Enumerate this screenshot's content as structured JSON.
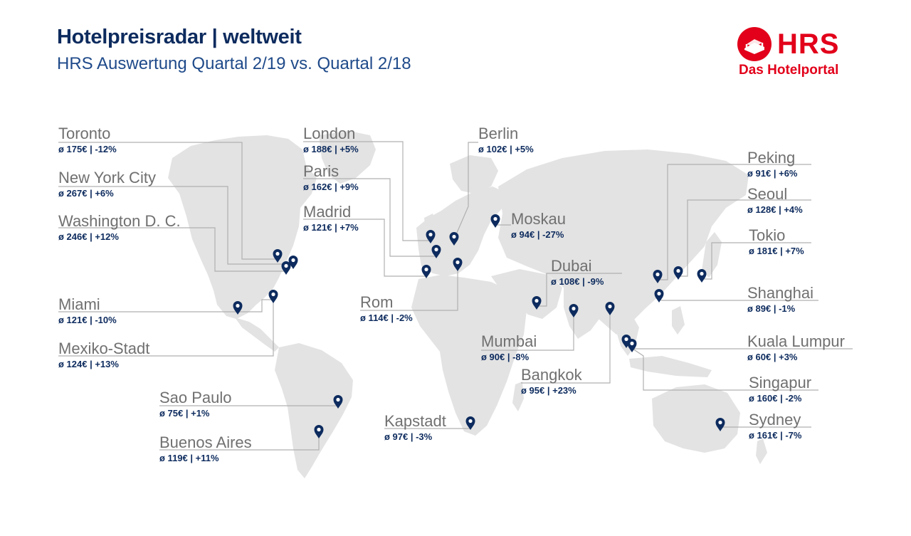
{
  "header": {
    "title": "Hotelpreisradar | weltweit",
    "subtitle": "HRS Auswertung Quartal 2/19 vs. Quartal 2/18"
  },
  "logo": {
    "wordmark": "HRS",
    "tagline": "Das Hotelportal",
    "color": "#e2001a"
  },
  "colors": {
    "land": "#e3e3e3",
    "marker": "#0d2b5e",
    "leader_line": "#b0b0b0",
    "city_name": "#707070",
    "stats": "#0d2b5e"
  },
  "cities": [
    {
      "name": "Toronto",
      "stats": "ø 175€ | -12%"
    },
    {
      "name": "New York City",
      "stats": "ø 267€ | +6%"
    },
    {
      "name": "Washington D. C.",
      "stats": "ø 246€ | +12%"
    },
    {
      "name": "Miami",
      "stats": "ø 121€ | -10%"
    },
    {
      "name": "Mexiko-Stadt",
      "stats": "ø 124€ | +13%"
    },
    {
      "name": "Sao Paulo",
      "stats": "ø 75€ | +1%"
    },
    {
      "name": "Buenos Aires",
      "stats": "ø 119€ | +11%"
    },
    {
      "name": "London",
      "stats": "ø 188€ | +5%"
    },
    {
      "name": "Paris",
      "stats": "ø 162€ | +9%"
    },
    {
      "name": "Madrid",
      "stats": "ø 121€ | +7%"
    },
    {
      "name": "Rom",
      "stats": "ø 114€ | -2%"
    },
    {
      "name": "Berlin",
      "stats": "ø 102€ | +5%"
    },
    {
      "name": "Moskau",
      "stats": "ø 94€ | -27%"
    },
    {
      "name": "Dubai",
      "stats": "ø 108€ | -9%"
    },
    {
      "name": "Mumbai",
      "stats": "ø 90€ | -8%"
    },
    {
      "name": "Bangkok",
      "stats": "ø 95€ | +23%"
    },
    {
      "name": "Kapstadt",
      "stats": "ø 97€ | -3%"
    },
    {
      "name": "Peking",
      "stats": "ø 91€ | +6%"
    },
    {
      "name": "Seoul",
      "stats": "ø 128€ | +4%"
    },
    {
      "name": "Tokio",
      "stats": "ø 181€ | +7%"
    },
    {
      "name": "Shanghai",
      "stats": "ø 89€ | -1%"
    },
    {
      "name": "Kuala Lumpur",
      "stats": "ø 60€ | +3%"
    },
    {
      "name": "Singapur",
      "stats": "ø 160€ | -2%"
    },
    {
      "name": "Sydney",
      "stats": "ø 161€ | -7%"
    }
  ]
}
